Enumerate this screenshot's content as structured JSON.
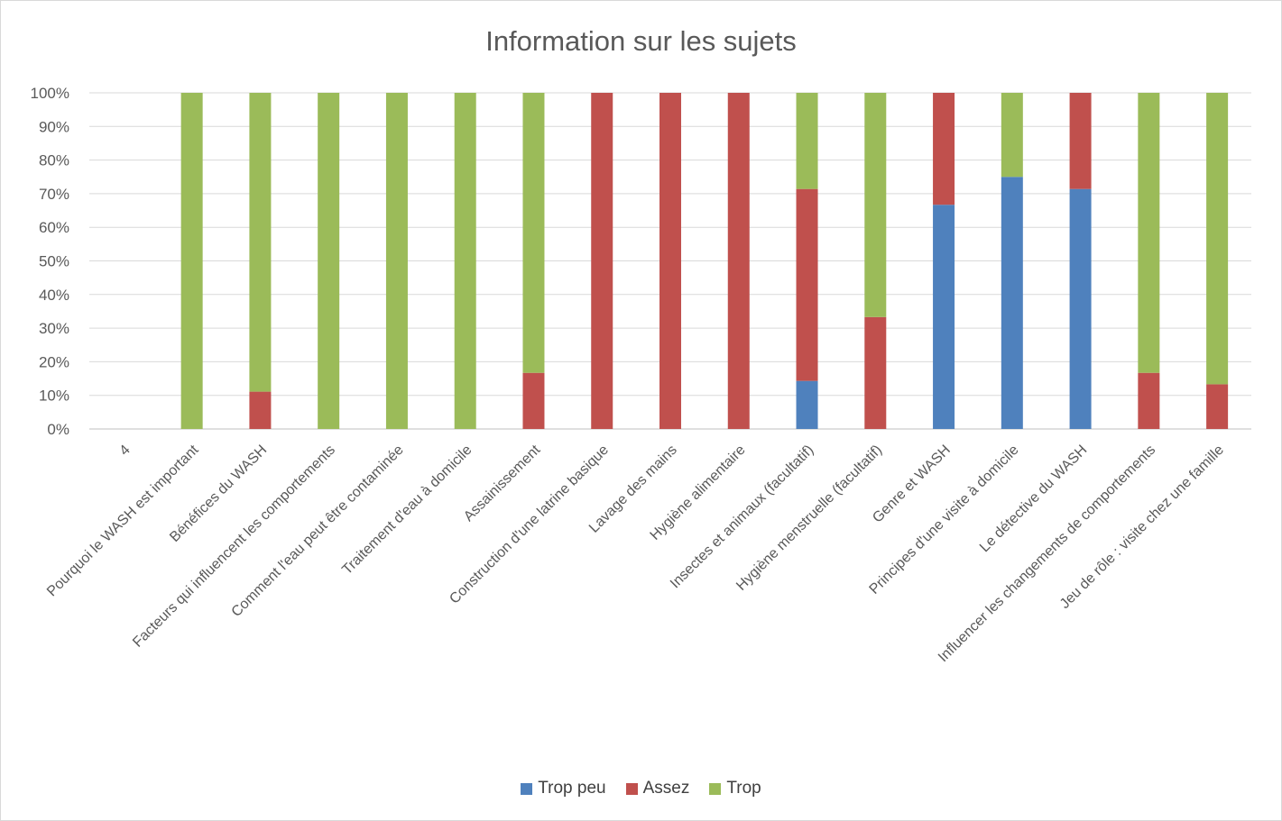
{
  "chart_data": {
    "type": "bar",
    "stacked": "percent",
    "title": "Information sur les sujets",
    "xlabel": "",
    "ylabel": "",
    "ylim": [
      0,
      100
    ],
    "y_ticks": [
      "0%",
      "10%",
      "20%",
      "30%",
      "40%",
      "50%",
      "60%",
      "70%",
      "80%",
      "90%",
      "100%"
    ],
    "grid": true,
    "legend": "bottom",
    "categories": [
      "4",
      "Pourquoi le WASH est important",
      "Bénéfices du WASH",
      "Facteurs qui influencent les comportements",
      "Comment l'eau peut être contaminée",
      "Traitement d'eau à domicile",
      "Assainissement",
      "Construction d'une latrine basique",
      "Lavage des mains",
      "Hygiène alimentaire",
      "Insectes et animaux (facultatif)",
      "Hygiène menstruelle (facultatif)",
      "Genre et WASH",
      "Principes d'une visite à domicile",
      "Le détective du WASH",
      "Influencer les changements de comportements",
      "Jeu de rôle : visite chez une famille"
    ],
    "series": [
      {
        "name": "Trop peu",
        "color": "#4f81bd",
        "values": [
          0,
          0,
          0,
          0,
          0,
          0,
          0,
          0,
          0,
          0,
          14.3,
          0,
          66.7,
          75,
          71.4,
          0,
          0
        ]
      },
      {
        "name": "Assez",
        "color": "#c0504d",
        "values": [
          0,
          0,
          11.1,
          0,
          0,
          0,
          16.7,
          100,
          100,
          100,
          57.1,
          33.3,
          33.3,
          0,
          28.6,
          16.7,
          13.3
        ]
      },
      {
        "name": "Trop",
        "color": "#9bbb59",
        "values": [
          0,
          100,
          88.9,
          100,
          100,
          100,
          83.3,
          0,
          0,
          0,
          28.6,
          66.7,
          0,
          25,
          0,
          83.3,
          86.7
        ]
      }
    ]
  }
}
